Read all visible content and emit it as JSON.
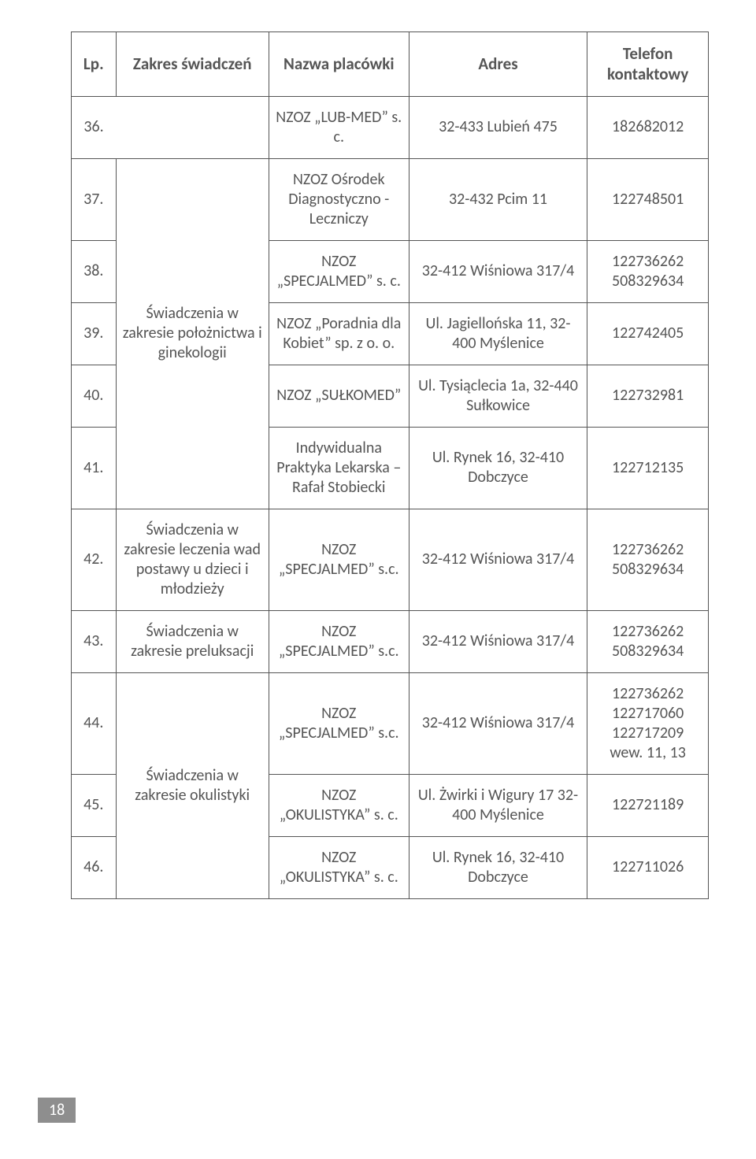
{
  "header": {
    "lp": "Lp.",
    "scope": "Zakres świadczeń",
    "name": "Nazwa placówki",
    "addr": "Adres",
    "tel": "Telefon kontaktowy"
  },
  "scopes": {
    "poloznictwo": "Świadczenia w zakresie położnictwa i ginekologii",
    "wady_postawy": "Świadczenia w zakresie leczenia wad postawy u dzieci i młodzieży",
    "preluksacja": "Świadczenia w zakresie preluksacji",
    "okulistyka": "Świadczenia w zakresie okulistyki"
  },
  "rows": {
    "r36": {
      "lp": "36.",
      "name": "NZOZ „LUB-MED” s. c.",
      "addr": "32-433 Lubień 475",
      "tel": "182682012"
    },
    "r37": {
      "lp": "37.",
      "name": "NZOZ Ośrodek Diagnostyczno - Leczniczy",
      "addr": "32-432 Pcim 11",
      "tel": "122748501"
    },
    "r38": {
      "lp": "38.",
      "name": "NZOZ „SPECJALMED” s. c.",
      "addr": "32-412 Wiśniowa 317/4",
      "tel": "122736262 508329634"
    },
    "r39": {
      "lp": "39.",
      "name": "NZOZ „Poradnia dla Kobiet” sp. z o. o.",
      "addr": "Ul. Jagiellońska 11, 32-400 Myślenice",
      "tel": "122742405"
    },
    "r40": {
      "lp": "40.",
      "name": "NZOZ „SUŁKOMED”",
      "addr": "Ul. Tysiąclecia 1a, 32-440 Sułkowice",
      "tel": "122732981"
    },
    "r41": {
      "lp": "41.",
      "name": "Indywidualna Praktyka Lekarska – Rafał Stobiecki",
      "addr": "Ul. Rynek 16, 32-410 Dobczyce",
      "tel": "122712135"
    },
    "r42": {
      "lp": "42.",
      "name": "NZOZ „SPECJALMED” s.c.",
      "addr": "32-412 Wiśniowa 317/4",
      "tel": "122736262 508329634"
    },
    "r43": {
      "lp": "43.",
      "name": "NZOZ „SPECJALMED” s.c.",
      "addr": "32-412 Wiśniowa 317/4",
      "tel": "122736262 508329634"
    },
    "r44": {
      "lp": "44.",
      "name": "NZOZ „SPECJALMED” s.c.",
      "addr": "32-412 Wiśniowa 317/4",
      "tel": "122736262 122717060 122717209 wew. 11, 13"
    },
    "r45": {
      "lp": "45.",
      "name": "NZOZ „OKULISTYKA” s. c.",
      "addr": "Ul. Żwirki i Wigury 17 32-400 Myślenice",
      "tel": "122721189"
    },
    "r46": {
      "lp": "46.",
      "name": "NZOZ „OKULISTYKA” s. c.",
      "addr": "Ul. Rynek 16, 32-410 Dobczyce",
      "tel": "122711026"
    }
  },
  "page_number": "18",
  "style": {
    "text_color": "#555555",
    "border_color": "#555555",
    "page_tab_bg": "#8e8e8e",
    "page_tab_fg": "#ffffff",
    "font_size_cell": 20,
    "font_size_header": 21
  }
}
